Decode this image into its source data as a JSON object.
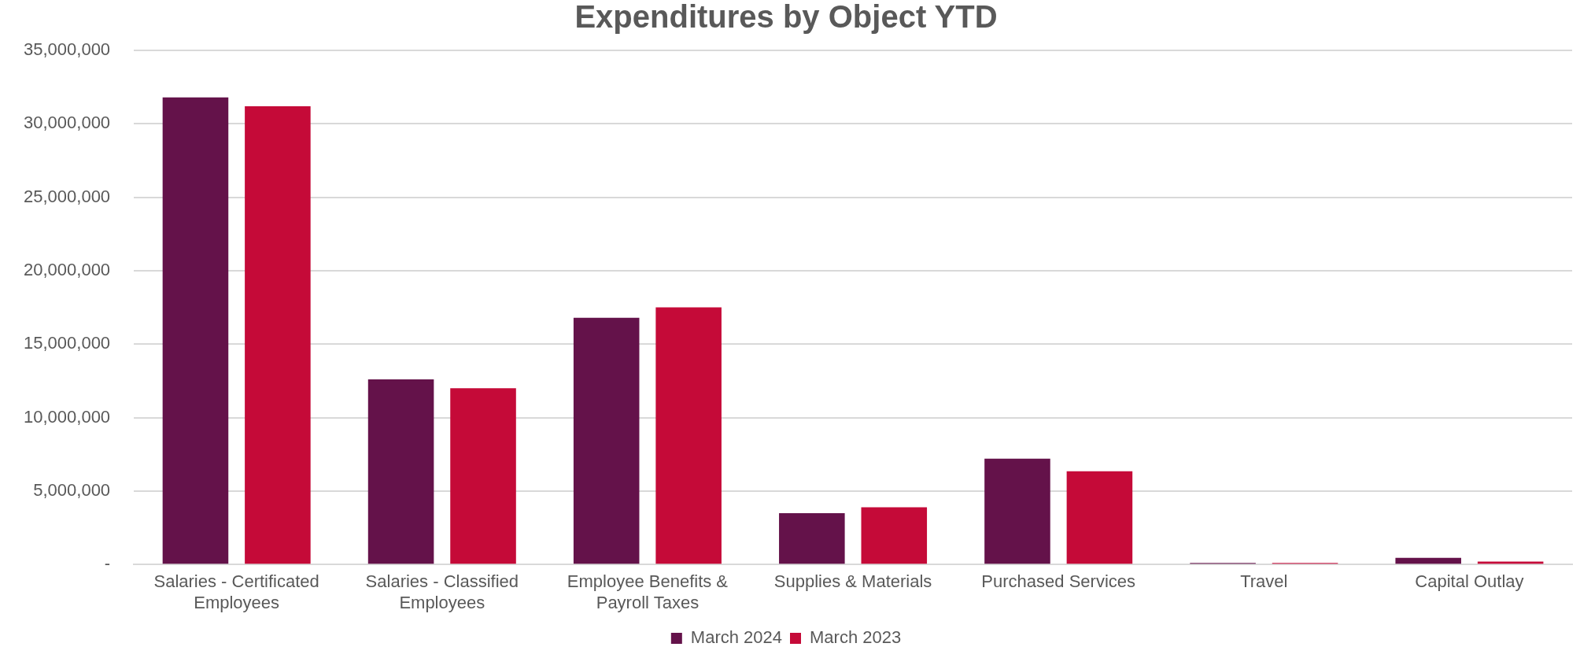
{
  "chart_data": {
    "type": "bar",
    "title": "Expenditures by Object YTD",
    "categories": [
      [
        "Salaries - Certificated",
        "Employees"
      ],
      [
        "Salaries - Classified",
        "Employees"
      ],
      [
        "Employee Benefits &",
        "Payroll Taxes"
      ],
      "Supplies & Materials",
      "Purchased Services",
      "Travel",
      "Capital Outlay"
    ],
    "series": [
      {
        "name": "March 2024",
        "color": "#64124a",
        "values": [
          31800000,
          12600000,
          16800000,
          3500000,
          7200000,
          50000,
          450000
        ]
      },
      {
        "name": "March 2023",
        "color": "#c50a38",
        "values": [
          31200000,
          12000000,
          17500000,
          3900000,
          6350000,
          50000,
          200000
        ]
      }
    ],
    "ylim": [
      0,
      35000000
    ],
    "yticks": [
      {
        "value": 0,
        "label": "-"
      },
      {
        "value": 5000000,
        "label": "5,000,000"
      },
      {
        "value": 10000000,
        "label": "10,000,000"
      },
      {
        "value": 15000000,
        "label": "15,000,000"
      },
      {
        "value": 20000000,
        "label": "20,000,000"
      },
      {
        "value": 25000000,
        "label": "25,000,000"
      },
      {
        "value": 30000000,
        "label": "30,000,000"
      },
      {
        "value": 35000000,
        "label": "35,000,000"
      }
    ],
    "grid": "y",
    "legend": "bottom"
  }
}
